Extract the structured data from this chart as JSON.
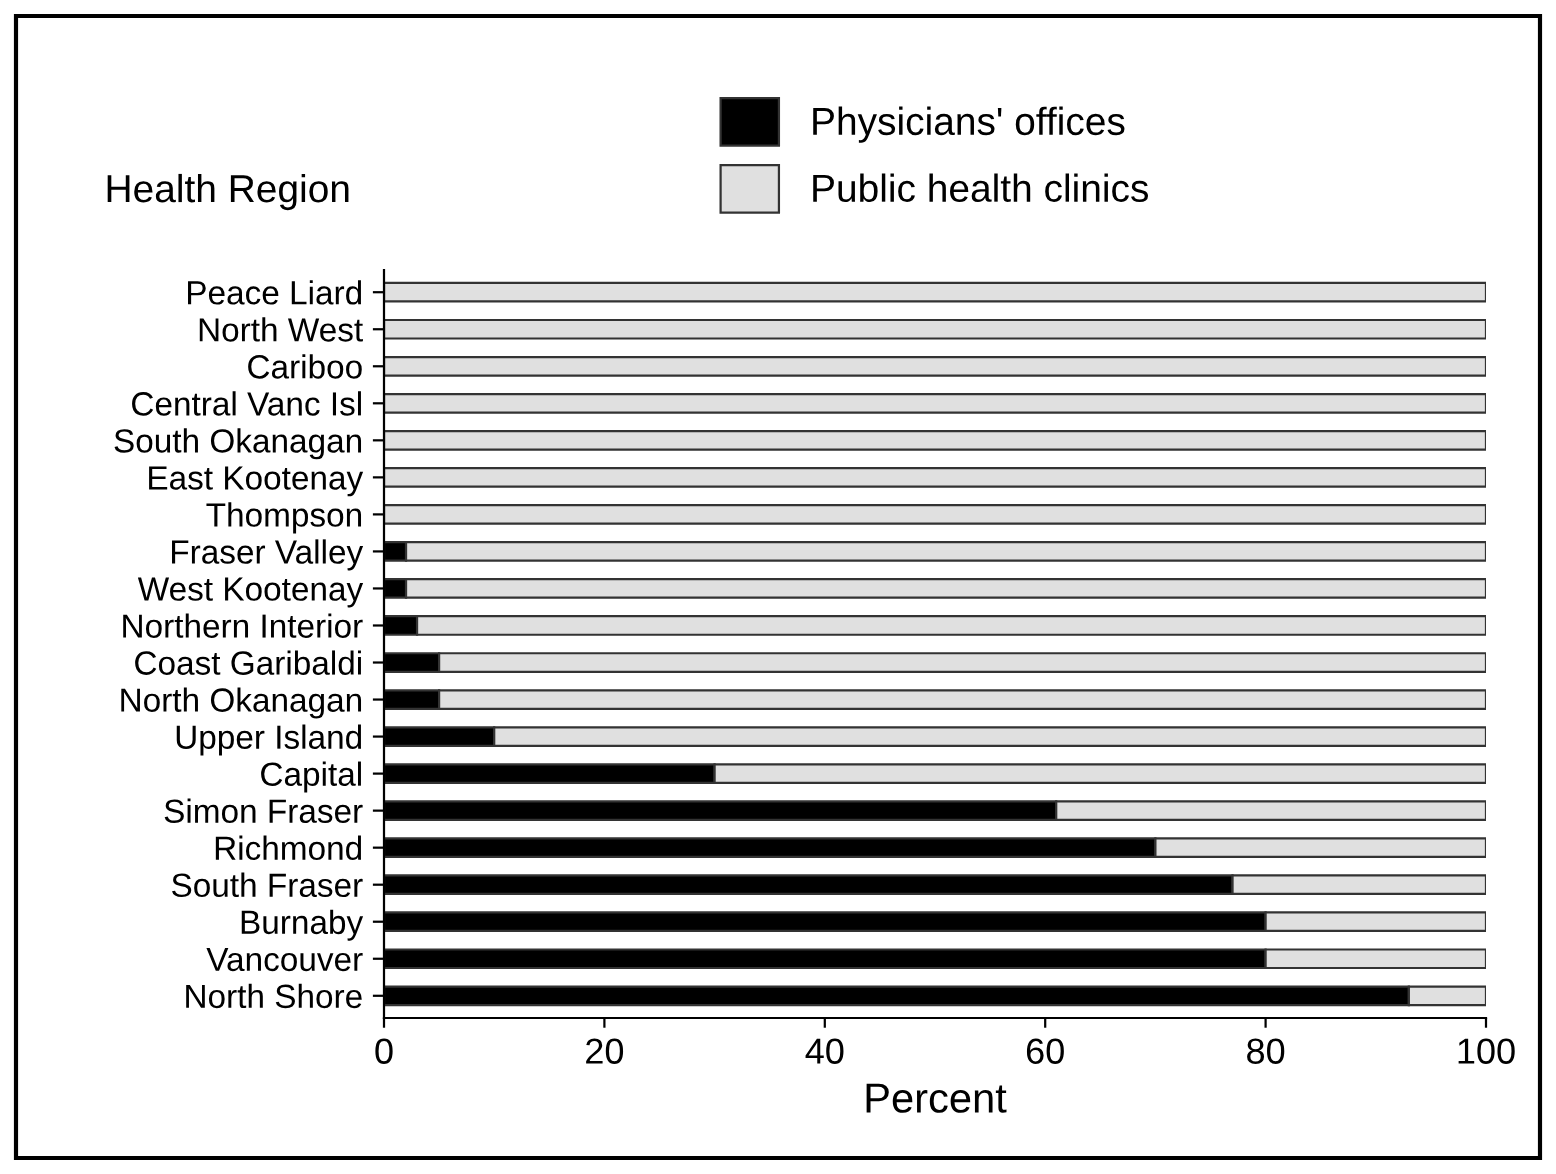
{
  "chart_data": {
    "type": "bar",
    "orientation": "horizontal",
    "stacked": true,
    "ylabel": "Health Region",
    "xlabel": "Percent",
    "categories": [
      "Peace Liard",
      "North West",
      "Cariboo",
      "Central Vanc Isl",
      "South Okanagan",
      "East Kootenay",
      "Thompson",
      "Fraser Valley",
      "West Kootenay",
      "Northern Interior",
      "Coast Garibaldi",
      "North Okanagan",
      "Upper Island",
      "Capital",
      "Simon Fraser",
      "Richmond",
      "South Fraser",
      "Burnaby",
      "Vancouver",
      "North Shore"
    ],
    "series": [
      {
        "name": "Physicians' offices",
        "color": "#000000",
        "values": [
          0,
          0,
          0,
          0,
          0,
          0,
          0,
          2,
          2,
          3,
          5,
          5,
          10,
          30,
          61,
          70,
          77,
          80,
          80,
          93
        ]
      },
      {
        "name": "Public health clinics",
        "color": "#e0e0e0",
        "values": [
          100,
          100,
          100,
          100,
          100,
          100,
          100,
          98,
          98,
          97,
          95,
          95,
          90,
          70,
          39,
          30,
          23,
          20,
          20,
          7
        ]
      }
    ],
    "xlim": [
      0,
      100
    ],
    "xticks": [
      0,
      20,
      40,
      60,
      80,
      100
    ],
    "grid": false,
    "legend": "top"
  }
}
